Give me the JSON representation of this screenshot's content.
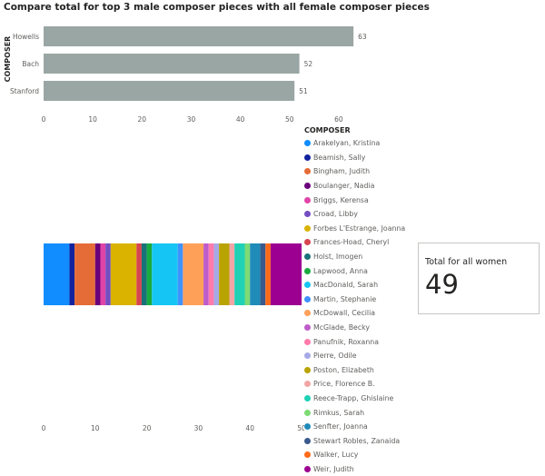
{
  "title": "Compare total for top 3 male composer pieces with all female composer pieces",
  "chart_data": [
    {
      "type": "bar",
      "orientation": "horizontal",
      "ylabel": "COMPOSER",
      "categories": [
        "Howells",
        "Bach",
        "Stanford"
      ],
      "values": [
        63,
        52,
        51
      ],
      "color": "#9aa6a4",
      "xlim": [
        0,
        65
      ],
      "xticks": [
        0,
        10,
        20,
        30,
        40,
        50,
        60
      ]
    },
    {
      "type": "bar",
      "orientation": "horizontal",
      "stacked": true,
      "legend_title": "COMPOSER",
      "legend_position": "right",
      "xlim": [
        0,
        50
      ],
      "xticks": [
        0,
        10,
        20,
        30,
        40,
        50
      ],
      "series": [
        {
          "name": "Arakelyan, Kristina",
          "value": 5,
          "color": "#118DFF"
        },
        {
          "name": "Beamish, Sally",
          "value": 1,
          "color": "#12239E"
        },
        {
          "name": "Bingham, Judith",
          "value": 4,
          "color": "#E66C37"
        },
        {
          "name": "Boulanger, Nadia",
          "value": 1,
          "color": "#6B007B"
        },
        {
          "name": "Briggs, Kerensa",
          "value": 1,
          "color": "#E044A7"
        },
        {
          "name": "Croad, Libby",
          "value": 1,
          "color": "#744EC2"
        },
        {
          "name": "Forbes L'Estrange, Joanna",
          "value": 5,
          "color": "#D9B300"
        },
        {
          "name": "Frances-Hoad, Cheryl",
          "value": 1,
          "color": "#D64550"
        },
        {
          "name": "Holst, Imogen",
          "value": 1,
          "color": "#197278"
        },
        {
          "name": "Lapwood, Anna",
          "value": 1,
          "color": "#1AAB40"
        },
        {
          "name": "MacDonald, Sarah",
          "value": 5,
          "color": "#15C6F4"
        },
        {
          "name": "Martin, Stephanie",
          "value": 1,
          "color": "#4092FF"
        },
        {
          "name": "McDowall, Cecilia",
          "value": 4,
          "color": "#FFA058"
        },
        {
          "name": "McGlade, Becky",
          "value": 1,
          "color": "#BE5DC9"
        },
        {
          "name": "Panufnik, Roxanna",
          "value": 1,
          "color": "#FF7BAC"
        },
        {
          "name": "Pierre, Odile",
          "value": 1,
          "color": "#A6A9E6"
        },
        {
          "name": "Poston, Elizabeth",
          "value": 2,
          "color": "#B8A300"
        },
        {
          "name": "Price, Florence B.",
          "value": 1,
          "color": "#F3A5A5"
        },
        {
          "name": "Reece-Trapp, Ghislaine",
          "value": 2,
          "color": "#1FD1B5"
        },
        {
          "name": "Rimkus, Sarah",
          "value": 1,
          "color": "#7DDB74"
        },
        {
          "name": "Senfter, Joanna",
          "value": 2,
          "color": "#1F8BB8"
        },
        {
          "name": "Stewart Robles, Zanaida",
          "value": 1,
          "color": "#3A5A8C"
        },
        {
          "name": "Walker, Lucy",
          "value": 1,
          "color": "#FF6A1A"
        },
        {
          "name": "Weir, Judith",
          "value": 6,
          "color": "#9C0090"
        }
      ]
    }
  ],
  "card": {
    "title": "Total for all women",
    "value": "49"
  }
}
